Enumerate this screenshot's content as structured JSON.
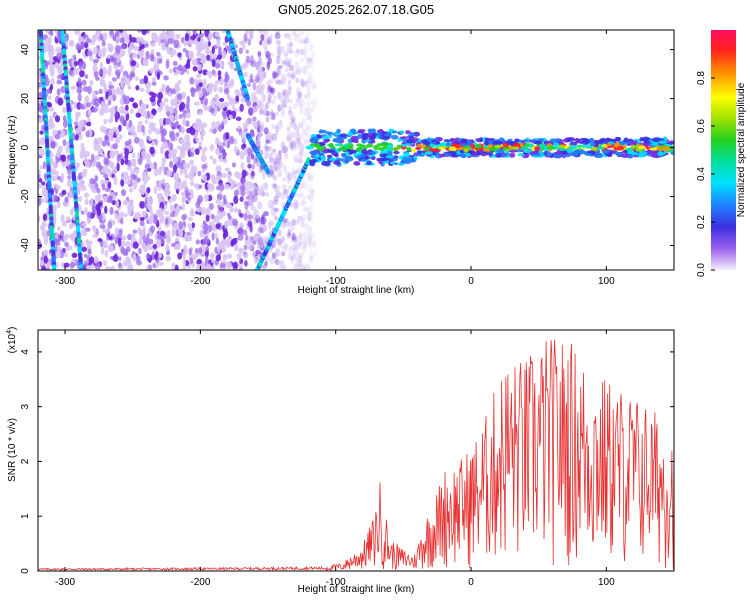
{
  "figure": {
    "title": "GN05.2025.262.07.18.G05"
  },
  "chart_data": [
    {
      "type": "heatmap",
      "title": "GN05.2025.262.07.18.G05",
      "xlabel": "Height of straight line (km)",
      "ylabel": "Frequency (Hz)",
      "xlim": [
        -320,
        150
      ],
      "ylim": [
        -50,
        48
      ],
      "x_ticks": [
        -300,
        -200,
        -100,
        0,
        100
      ],
      "y_ticks": [
        -40,
        -20,
        0,
        20,
        40
      ],
      "colorbar": {
        "label": "Normalized spectral amplitude",
        "range": [
          0,
          1
        ],
        "ticks": [
          0.0,
          0.2,
          0.4,
          0.6,
          0.8
        ],
        "tick_labels": [
          "0.0",
          "0.2",
          "0.4",
          "0.6",
          "0.8"
        ],
        "colors": [
          "#e8d8f8",
          "#7a2fe0",
          "#3b2fe0",
          "#1f7fff",
          "#00e0ff",
          "#00e0a0",
          "#20d020",
          "#a0e000",
          "#ffff00",
          "#ff9000",
          "#ff2020",
          "#ff1060"
        ]
      },
      "features": {
        "noise_region_x": [
          -320,
          -115
        ],
        "main_line": {
          "x_start": -120,
          "x_end": 150,
          "freq_hz": 0
        },
        "tracks": [
          {
            "x1": -318,
            "y1": 48,
            "x2": -308,
            "y2": -50
          },
          {
            "x1": -302,
            "y1": 48,
            "x2": -288,
            "y2": -50
          },
          {
            "x1": -180,
            "y1": 48,
            "x2": -165,
            "y2": 20
          },
          {
            "x1": -165,
            "y1": 5,
            "x2": -150,
            "y2": -10
          },
          {
            "x1": -158,
            "y1": -50,
            "x2": -120,
            "y2": -5
          }
        ]
      }
    },
    {
      "type": "line",
      "xlabel": "Height of straight line (km)",
      "ylabel": "SNR (10 * v/v)",
      "y_multiplier_label": "(x10",
      "y_multiplier_exp": "4",
      "y_multiplier_close": ")",
      "xlim": [
        -320,
        150
      ],
      "ylim": [
        0,
        4.4
      ],
      "x_ticks": [
        -300,
        -200,
        -100,
        0,
        100
      ],
      "y_ticks": [
        0,
        1,
        2,
        3,
        4
      ],
      "series": [
        {
          "color": "#e83030",
          "envelope": [
            {
              "x": -320,
              "y": 0.05
            },
            {
              "x": -200,
              "y": 0.06
            },
            {
              "x": -110,
              "y": 0.08
            },
            {
              "x": -95,
              "y": 0.15
            },
            {
              "x": -80,
              "y": 0.5
            },
            {
              "x": -72,
              "y": 1.0
            },
            {
              "x": -67,
              "y": 1.7
            },
            {
              "x": -60,
              "y": 0.6
            },
            {
              "x": -50,
              "y": 0.4
            },
            {
              "x": -42,
              "y": 0.3
            },
            {
              "x": -35,
              "y": 0.9
            },
            {
              "x": -25,
              "y": 1.5
            },
            {
              "x": -18,
              "y": 2.0
            },
            {
              "x": -10,
              "y": 2.0
            },
            {
              "x": 0,
              "y": 2.3
            },
            {
              "x": 10,
              "y": 2.8
            },
            {
              "x": 25,
              "y": 3.9
            },
            {
              "x": 40,
              "y": 3.9
            },
            {
              "x": 55,
              "y": 4.3
            },
            {
              "x": 72,
              "y": 4.3
            },
            {
              "x": 90,
              "y": 3.7
            },
            {
              "x": 110,
              "y": 3.4
            },
            {
              "x": 130,
              "y": 3.1
            },
            {
              "x": 150,
              "y": 2.6
            }
          ]
        }
      ]
    }
  ]
}
